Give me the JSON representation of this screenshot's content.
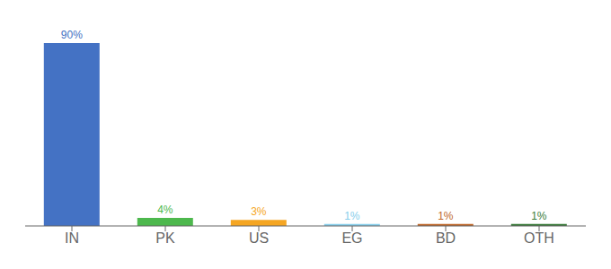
{
  "chart_data": {
    "type": "bar",
    "categories": [
      "IN",
      "PK",
      "US",
      "EG",
      "BD",
      "OTH"
    ],
    "values": [
      90,
      4,
      3,
      1,
      1,
      1
    ],
    "value_labels": [
      "90%",
      "4%",
      "3%",
      "1%",
      "1%",
      "1%"
    ],
    "colors": [
      "#4472c4",
      "#4db84d",
      "#f5a623",
      "#87ceeb",
      "#c0692b",
      "#3a7d3a"
    ],
    "ylim": [
      0,
      97
    ],
    "data_labels": true,
    "tick_labels": "x",
    "grid": false
  }
}
